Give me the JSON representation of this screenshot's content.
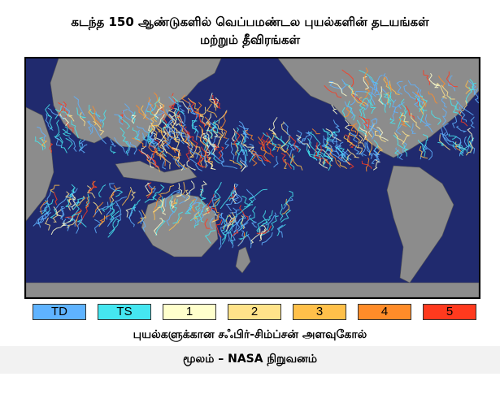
{
  "title": {
    "line1": "கடந்த 150 ஆண்டுகளில் வெப்பமண்டல புயல்களின் தடயங்கள்",
    "line2": "மற்றும் தீவிரங்கள்"
  },
  "map": {
    "ocean_color": "#202a6e",
    "land_color": "#8c8c8c"
  },
  "legend": {
    "items": [
      {
        "label": "TD",
        "color": "#5fb3ff"
      },
      {
        "label": "TS",
        "color": "#45e6f0"
      },
      {
        "label": "1",
        "color": "#ffffcc"
      },
      {
        "label": "2",
        "color": "#ffe38a"
      },
      {
        "label": "3",
        "color": "#ffc04a"
      },
      {
        "label": "4",
        "color": "#ff8c29"
      },
      {
        "label": "5",
        "color": "#ff3a1e"
      }
    ]
  },
  "scale_label": "புயல்களுக்கான சஃபிர்-சிம்ப்சன் அளவுகோல்",
  "source": "மூலம் – NASA  நிறுவனம்"
}
